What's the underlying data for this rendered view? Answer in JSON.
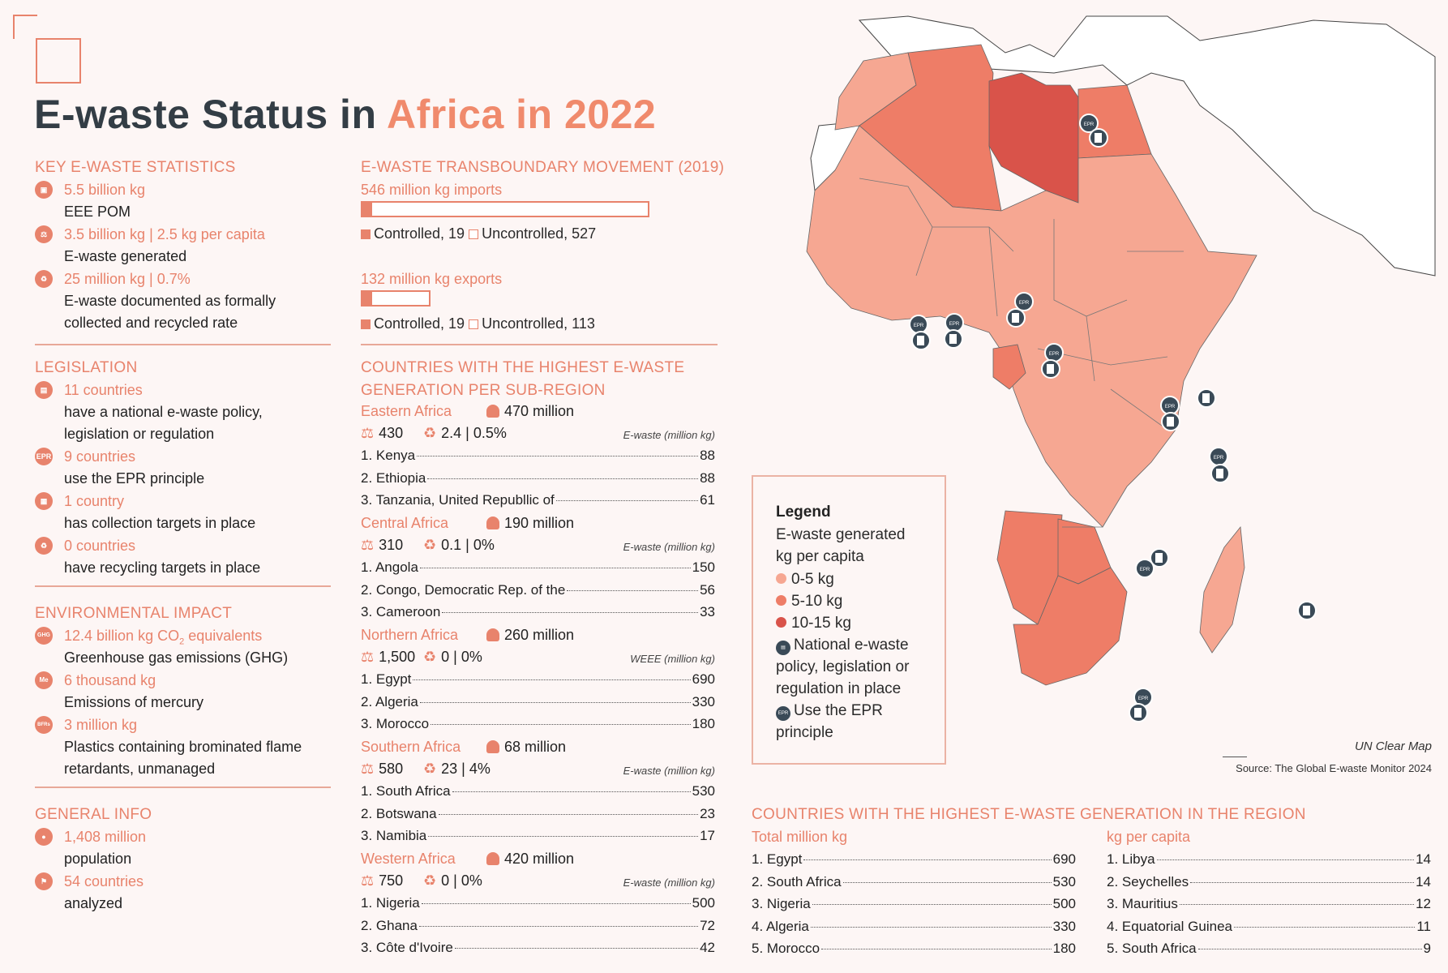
{
  "header": {
    "title_dark": "E-waste Status in ",
    "title_accent": "Africa in 2022"
  },
  "key_stats": {
    "heading": "KEY E-WASTE STATISTICS",
    "items": [
      {
        "value": "5.5 billion kg",
        "desc": "EEE POM"
      },
      {
        "value": "3.5 billion kg | 2.5 kg per capita",
        "desc": "E-waste generated"
      },
      {
        "value": "25 million kg | 0.7%",
        "desc": "E-waste documented as formally",
        "desc2": "collected and recycled rate"
      }
    ]
  },
  "legislation": {
    "heading": "LEGISLATION",
    "items": [
      {
        "value": "11 countries",
        "desc": "have a national e-waste policy,",
        "desc2": "legislation or regulation"
      },
      {
        "value": "9 countries",
        "desc": "use the EPR principle",
        "icon_text": "EPR"
      },
      {
        "value": "1 country",
        "desc": "has collection targets in place"
      },
      {
        "value": "0 countries",
        "desc": "have recycling targets in place"
      }
    ]
  },
  "environmental": {
    "heading": "ENVIRONMENTAL IMPACT",
    "items": [
      {
        "value": "12.4 billion kg CO",
        "sub": "2",
        "value_tail": " equivalents",
        "desc": "Greenhouse gas emissions (GHG)",
        "icon_text": "GHG"
      },
      {
        "value": "6 thousand kg",
        "desc": "Emissions of mercury",
        "icon_text": "Me"
      },
      {
        "value": "3 million kg",
        "desc": "Plastics containing brominated flame",
        "desc2": "retardants, unmanaged",
        "icon_text": "BFRs"
      }
    ]
  },
  "general": {
    "heading": "GENERAL INFO",
    "items": [
      {
        "value": "1,408 million",
        "desc": "population"
      },
      {
        "value": "54 countries",
        "desc": "analyzed"
      }
    ]
  },
  "transboundary": {
    "heading": "E-WASTE TRANSBOUNDARY MOVEMENT (2019)",
    "imports": {
      "label": "546 million kg imports",
      "legend": "Controlled, 19",
      "legend2": "Uncontrolled, 527",
      "controlled": 19,
      "uncontrolled": 527
    },
    "exports": {
      "label": "132 million kg exports",
      "legend": "Controlled, 19",
      "legend2": "Uncontrolled, 113",
      "controlled": 19,
      "uncontrolled": 113
    }
  },
  "subregions": {
    "heading1": "COUNTRIES WITH THE HIGHEST E-WASTE",
    "heading2": "GENERATION PER SUB-REGION",
    "regions": [
      {
        "name": "Eastern Africa",
        "pop": "470 million",
        "gen": "430",
        "rate": "2.4 | 0.5%",
        "unit": "E-waste (million kg)",
        "rows": [
          {
            "c": "1. Kenya",
            "v": "88"
          },
          {
            "c": "2. Ethiopia",
            "v": "88"
          },
          {
            "c": "3. Tanzania, United Republlic of",
            "v": "61"
          }
        ]
      },
      {
        "name": "Central Africa",
        "pop": "190 million",
        "gen": "310",
        "rate": "0.1 | 0%",
        "unit": "E-waste (million kg)",
        "rows": [
          {
            "c": "1. Angola",
            "v": "150"
          },
          {
            "c": "2. Congo, Democratic Rep. of the",
            "v": "56"
          },
          {
            "c": "3. Cameroon",
            "v": "33"
          }
        ]
      },
      {
        "name": "Northern Africa",
        "pop": "260 million",
        "gen": "1,500",
        "rate": "0 | 0%",
        "unit": "WEEE (million kg)",
        "rows": [
          {
            "c": "1. Egypt",
            "v": "690"
          },
          {
            "c": "2. Algeria",
            "v": "330"
          },
          {
            "c": "3. Morocco",
            "v": "180"
          }
        ]
      },
      {
        "name": "Southern Africa",
        "pop": "68 million",
        "gen": "580",
        "rate": "23 | 4%",
        "unit": "E-waste (million kg)",
        "rows": [
          {
            "c": "1. South Africa",
            "v": "530"
          },
          {
            "c": "2. Botswana",
            "v": "23"
          },
          {
            "c": "3. Namibia",
            "v": "17"
          }
        ]
      },
      {
        "name": "Western Africa",
        "pop": "420 million",
        "gen": "750",
        "rate": "0 | 0%",
        "unit": "E-waste (million kg)",
        "rows": [
          {
            "c": "1. Nigeria",
            "v": "500"
          },
          {
            "c": "2. Ghana",
            "v": "72"
          },
          {
            "c": "3. Côte d'Ivoire",
            "v": "42"
          }
        ]
      }
    ]
  },
  "legend": {
    "title": "Legend",
    "line1": "E-waste generated",
    "line2": "kg per capita",
    "bins": [
      "0-5 kg",
      "5-10 kg",
      "10-15 kg"
    ],
    "bin_colors": [
      "#f6a792",
      "#ee7d67",
      "#d9534a"
    ],
    "policy1": "National e-waste",
    "policy2": "policy, legislation or",
    "policy3": "regulation in place",
    "epr1": "Use the EPR",
    "epr2": "principle",
    "epr_icon_text": "EPR"
  },
  "map": {
    "credit": "UN Clear Map",
    "source": "Source: The Global E-waste Monitor 2024",
    "pin_text": "EPR"
  },
  "region_top": {
    "heading": "COUNTRIES WITH THE HIGHEST E-WASTE GENERATION IN THE REGION",
    "total_heading": "Total million kg",
    "percap_heading": "kg per capita",
    "total": [
      {
        "c": "1. Egypt",
        "v": "690"
      },
      {
        "c": "2. South Africa",
        "v": "530"
      },
      {
        "c": "3. Nigeria",
        "v": "500"
      },
      {
        "c": "4. Algeria",
        "v": "330"
      },
      {
        "c": "5. Morocco",
        "v": "180"
      }
    ],
    "percap": [
      {
        "c": "1. Libya",
        "v": "14"
      },
      {
        "c": "2. Seychelles",
        "v": "14"
      },
      {
        "c": "3. Mauritius",
        "v": "12"
      },
      {
        "c": "4. Equatorial Guinea",
        "v": "11"
      },
      {
        "c": "5. South Africa",
        "v": "9"
      }
    ]
  }
}
